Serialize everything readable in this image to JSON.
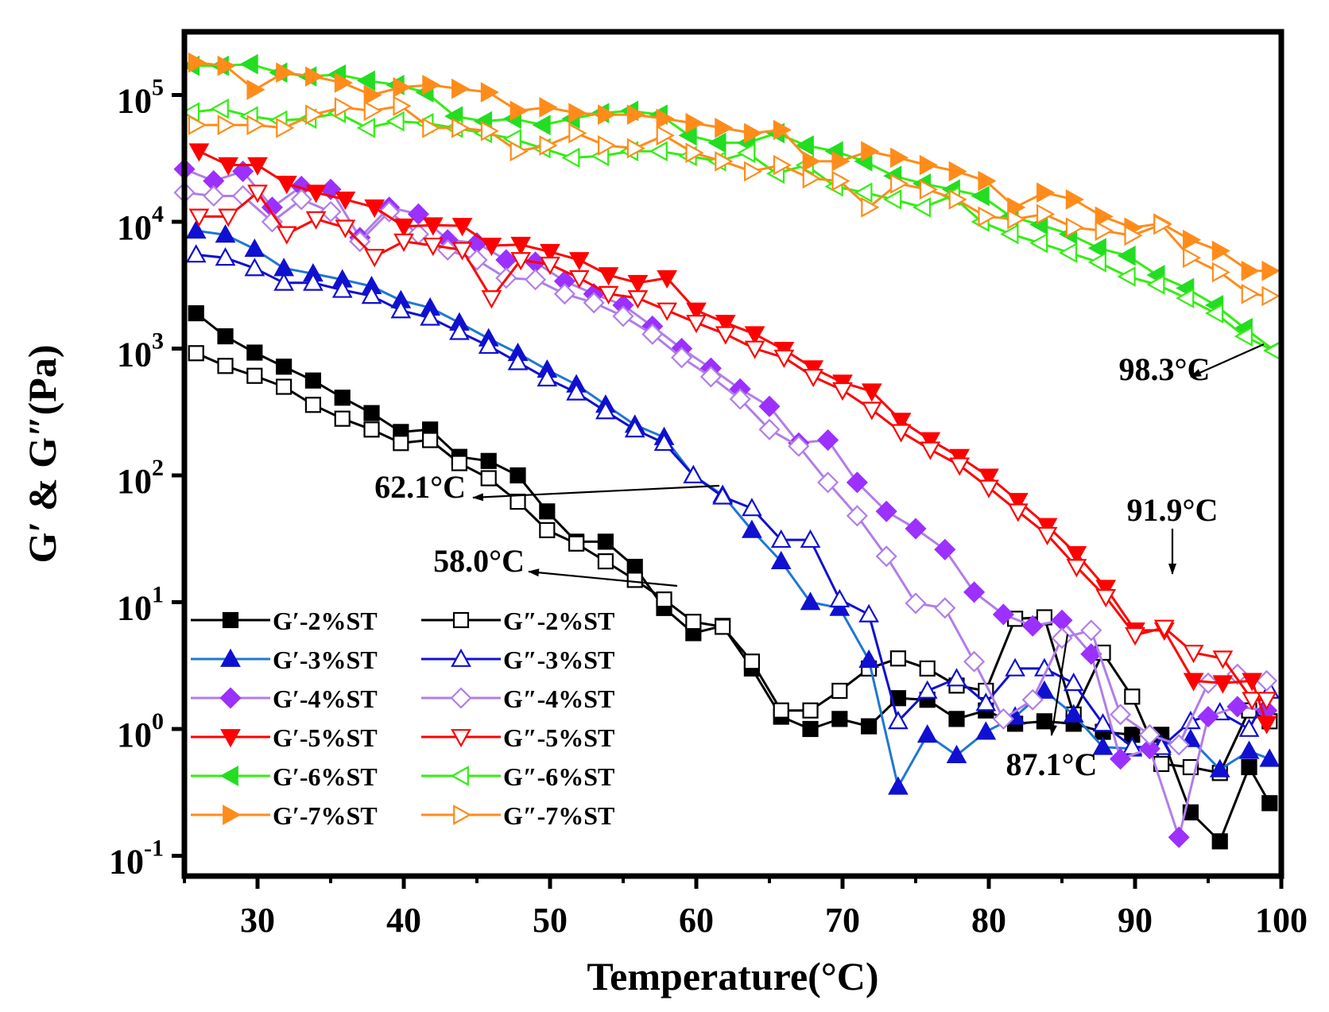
{
  "chart_data": {
    "type": "line",
    "title": "",
    "xlabel": "Temperature(°C)",
    "ylabel": "G′ & G″(Pa)",
    "yscale": "log",
    "xlim": [
      25,
      100
    ],
    "ylim": [
      0.1,
      400000
    ],
    "x_ticks": [
      30,
      40,
      50,
      60,
      70,
      80,
      90,
      100
    ],
    "x_tick_labels": [
      "30",
      "40",
      "50",
      "60",
      "70",
      "80",
      "90",
      "100"
    ],
    "y_ticks": [
      {
        "value": 0.1,
        "base": "10",
        "exp": "-1"
      },
      {
        "value": 1,
        "base": "10",
        "exp": "0"
      },
      {
        "value": 10,
        "base": "10",
        "exp": "1"
      },
      {
        "value": 100,
        "base": "10",
        "exp": "2"
      },
      {
        "value": 1000,
        "base": "10",
        "exp": "3"
      },
      {
        "value": 10000,
        "base": "10",
        "exp": "4"
      },
      {
        "value": 100000,
        "base": "10",
        "exp": "5"
      }
    ],
    "legend_location": "bottom-left",
    "series": [
      {
        "name": "G′-2%ST",
        "color": "#000000",
        "marker": "square",
        "filled": true,
        "x": [
          25.8,
          27.8,
          29.8,
          31.8,
          33.8,
          35.8,
          37.8,
          39.8,
          41.8,
          43.8,
          45.8,
          47.8,
          49.8,
          51.8,
          53.8,
          55.8,
          57.8,
          59.8,
          61.8,
          63.8,
          65.8,
          67.8,
          69.8,
          71.8,
          73.8,
          75.8,
          77.8,
          79.8,
          81.8,
          83.8,
          85.8,
          87.8,
          89.8,
          91.8,
          93.8,
          95.8,
          97.8,
          99.2
        ],
        "y": [
          1900,
          1250,
          930,
          720,
          560,
          410,
          310,
          220,
          230,
          140,
          130,
          100,
          52,
          30,
          30,
          19,
          9,
          5.7,
          6.5,
          3.0,
          1.25,
          1.0,
          1.2,
          1.05,
          1.75,
          1.7,
          1.2,
          1.4,
          1.1,
          1.15,
          1.1,
          0.95,
          0.9,
          0.9,
          0.22,
          0.13,
          0.5,
          0.26
        ]
      },
      {
        "name": "G″-2%ST",
        "color": "#000000",
        "marker": "square",
        "filled": false,
        "x": [
          25.8,
          27.8,
          29.8,
          31.8,
          33.8,
          35.8,
          37.8,
          39.8,
          41.8,
          43.8,
          45.8,
          47.8,
          49.8,
          51.8,
          53.8,
          55.8,
          57.8,
          59.8,
          61.8,
          63.8,
          65.8,
          67.8,
          69.8,
          71.8,
          73.8,
          75.8,
          77.8,
          79.8,
          81.8,
          83.8,
          85.8,
          87.8,
          89.8,
          91.8,
          93.8,
          95.8,
          97.8,
          99.2
        ],
        "y": [
          920,
          730,
          610,
          500,
          360,
          280,
          230,
          180,
          190,
          125,
          95,
          62,
          37,
          29,
          21,
          15,
          10.5,
          7,
          6.4,
          3.4,
          1.4,
          1.4,
          2.0,
          3.0,
          3.6,
          3.0,
          2.2,
          2.0,
          7.4,
          7.6,
          1.3,
          4.0,
          1.8,
          0.53,
          0.5,
          0.45,
          1.4,
          1.15
        ]
      },
      {
        "name": "G′-3%ST",
        "color": "#1f77d4",
        "marker": "triangle-up",
        "filled": true,
        "fill_color": "#1010d0",
        "x": [
          25.8,
          27.8,
          29.8,
          31.8,
          33.8,
          35.8,
          37.8,
          39.8,
          41.8,
          43.8,
          45.8,
          47.8,
          49.8,
          51.8,
          53.8,
          55.8,
          57.8,
          59.8,
          61.8,
          63.8,
          65.8,
          67.8,
          69.8,
          71.8,
          73.8,
          75.8,
          77.8,
          79.8,
          81.8,
          83.8,
          85.8,
          87.8,
          89.8,
          91.8,
          93.8,
          95.8,
          97.8,
          99.2
        ],
        "y": [
          8500,
          7900,
          6100,
          4300,
          3900,
          3500,
          3100,
          2400,
          2100,
          1600,
          1200,
          920,
          680,
          520,
          360,
          250,
          200,
          100,
          70,
          37,
          21,
          10,
          9,
          3.5,
          0.35,
          0.9,
          0.62,
          0.95,
          1.25,
          2.0,
          1.3,
          0.72,
          0.7,
          0.75,
          0.83,
          0.48,
          0.67,
          0.58
        ]
      },
      {
        "name": "G″-3%ST",
        "color": "#1010d0",
        "marker": "triangle-up",
        "filled": false,
        "x": [
          25.8,
          27.8,
          29.8,
          31.8,
          33.8,
          35.8,
          37.8,
          39.8,
          41.8,
          43.8,
          45.8,
          47.8,
          49.8,
          51.8,
          53.8,
          55.8,
          57.8,
          59.8,
          61.8,
          63.8,
          65.8,
          67.8,
          69.8,
          71.8,
          73.8,
          75.8,
          77.8,
          79.8,
          81.8,
          83.8,
          85.8,
          87.8,
          89.8,
          91.8,
          93.8,
          95.8,
          97.8,
          99.2
        ],
        "y": [
          5500,
          5200,
          4300,
          3300,
          3300,
          2900,
          2600,
          2000,
          1750,
          1350,
          1050,
          780,
          580,
          450,
          320,
          230,
          180,
          100,
          68,
          55,
          31,
          31,
          10.5,
          8,
          1.15,
          2.0,
          2.5,
          1.6,
          3.0,
          3.0,
          2.3,
          1.1,
          0.72,
          0.72,
          1.15,
          1.35,
          1.0,
          2.0
        ]
      },
      {
        "name": "G′-4%ST",
        "color": "#b07ee8",
        "marker": "diamond",
        "filled": true,
        "fill_color": "#9b30ff",
        "x": [
          25.0,
          27.0,
          29.0,
          31.0,
          33.0,
          35.0,
          37.0,
          39.0,
          41.0,
          43.0,
          45.0,
          47.0,
          49.0,
          51.0,
          53.0,
          55.0,
          57.0,
          59.0,
          61.0,
          63.0,
          65.0,
          67.0,
          69.0,
          71.0,
          73.0,
          75.0,
          77.0,
          79.0,
          81.0,
          83.0,
          85.0,
          87.0,
          89.0,
          91.0,
          93.0,
          95.0,
          97.0,
          99.0
        ],
        "y": [
          26000,
          21000,
          25000,
          13000,
          19000,
          18000,
          7500,
          13000,
          11500,
          7200,
          6800,
          5000,
          4800,
          3400,
          2700,
          2200,
          1500,
          1000,
          700,
          480,
          350,
          180,
          190,
          88,
          52,
          38,
          26,
          12,
          8,
          6.5,
          7.2,
          3.9,
          0.58,
          0.7,
          0.14,
          1.25,
          1.5,
          1.4
        ]
      },
      {
        "name": "G″-4%ST",
        "color": "#b07ee8",
        "marker": "diamond",
        "filled": false,
        "x": [
          25.0,
          27.0,
          29.0,
          31.0,
          33.0,
          35.0,
          37.0,
          39.0,
          41.0,
          43.0,
          45.0,
          47.0,
          49.0,
          51.0,
          53.0,
          55.0,
          57.0,
          59.0,
          61.0,
          63.0,
          65.0,
          67.0,
          69.0,
          71.0,
          73.0,
          75.0,
          77.0,
          79.0,
          81.0,
          83.0,
          85.0,
          87.0,
          89.0,
          91.0,
          93.0,
          95.0,
          97.0,
          99.0
        ],
        "y": [
          17000,
          16000,
          16000,
          10000,
          15000,
          12000,
          7000,
          12000,
          8000,
          6000,
          5000,
          3600,
          3500,
          2700,
          2300,
          1800,
          1300,
          850,
          600,
          400,
          230,
          170,
          88,
          48,
          23,
          9.8,
          9,
          3.4,
          1.2,
          1.7,
          5.2,
          6,
          1.3,
          0.9,
          0.75,
          2.3,
          2.7,
          2.4
        ]
      },
      {
        "name": "G′-5%ST",
        "color": "#ff0000",
        "marker": "triangle-down",
        "filled": true,
        "x": [
          26.0,
          28.0,
          30.0,
          32.0,
          34.0,
          36.0,
          38.0,
          40.0,
          42.0,
          44.0,
          46.0,
          48.0,
          50.0,
          52.0,
          54.0,
          56.0,
          58.0,
          60.0,
          62.0,
          64.0,
          66.0,
          68.0,
          70.0,
          72.0,
          74.0,
          76.0,
          78.0,
          80.0,
          82.0,
          84.0,
          86.0,
          88.0,
          90.0,
          92.0,
          94.0,
          96.0,
          98.0,
          99.0
        ],
        "y": [
          36000,
          28000,
          28000,
          20000,
          17000,
          15000,
          13000,
          9200,
          9400,
          9300,
          6500,
          6600,
          5800,
          5000,
          3800,
          3300,
          3600,
          2000,
          1600,
          1300,
          980,
          700,
          540,
          460,
          270,
          190,
          140,
          98,
          63,
          40,
          24,
          13,
          6,
          6,
          2.4,
          2.3,
          2.4,
          1.1
        ]
      },
      {
        "name": "G″-5%ST",
        "color": "#ff0000",
        "marker": "triangle-down",
        "filled": false,
        "x": [
          26.0,
          28.0,
          30.0,
          32.0,
          34.0,
          36.0,
          38.0,
          40.0,
          42.0,
          44.0,
          46.0,
          48.0,
          50.0,
          52.0,
          54.0,
          56.0,
          58.0,
          60.0,
          62.0,
          64.0,
          66.0,
          68.0,
          70.0,
          72.0,
          74.0,
          76.0,
          78.0,
          80.0,
          82.0,
          84.0,
          86.0,
          88.0,
          90.0,
          92.0,
          94.0,
          96.0,
          98.0,
          99.0
        ],
        "y": [
          11000,
          11000,
          17000,
          8000,
          10500,
          9000,
          5300,
          7000,
          6500,
          6000,
          2500,
          5000,
          4600,
          3600,
          2700,
          2500,
          2000,
          1600,
          1300,
          1000,
          850,
          600,
          470,
          330,
          220,
          160,
          120,
          80,
          52,
          34,
          19,
          11,
          5.5,
          6.3,
          4,
          3.6,
          1.7,
          1.7
        ]
      },
      {
        "name": "G′-6%ST",
        "color": "#33ee11",
        "marker": "triangle-left",
        "filled": true,
        "fill_color": "#22dd22",
        "x": [
          25.5,
          27.5,
          29.5,
          31.5,
          33.5,
          35.5,
          37.5,
          39.5,
          41.5,
          43.5,
          45.5,
          47.5,
          49.5,
          51.5,
          53.5,
          55.5,
          57.5,
          59.5,
          61.5,
          63.5,
          65.5,
          67.5,
          69.5,
          71.5,
          73.5,
          75.5,
          77.5,
          79.5,
          81.5,
          83.5,
          85.5,
          87.5,
          89.5,
          91.5,
          93.5,
          95.5,
          97.5,
          99.5
        ],
        "y": [
          170000,
          170000,
          175000,
          150000,
          140000,
          145000,
          130000,
          120000,
          105000,
          68000,
          62000,
          65000,
          58000,
          65000,
          72000,
          75000,
          70000,
          48000,
          42000,
          42000,
          50000,
          40000,
          36000,
          30000,
          23000,
          20000,
          18000,
          16000,
          11000,
          9500,
          8000,
          6200,
          5400,
          3800,
          3000,
          2200,
          1450,
          970
        ]
      },
      {
        "name": "G″-6%ST",
        "color": "#33ee11",
        "marker": "triangle-left",
        "filled": false,
        "x": [
          25.5,
          27.5,
          29.5,
          31.5,
          33.5,
          35.5,
          37.5,
          39.5,
          41.5,
          43.5,
          45.5,
          47.5,
          49.5,
          51.5,
          53.5,
          55.5,
          57.5,
          59.5,
          61.5,
          63.5,
          65.5,
          67.5,
          69.5,
          71.5,
          73.5,
          75.5,
          77.5,
          79.5,
          81.5,
          83.5,
          85.5,
          87.5,
          89.5,
          91.5,
          93.5,
          95.5,
          97.5,
          99.5
        ],
        "y": [
          73000,
          78000,
          68000,
          63000,
          65000,
          72000,
          55000,
          62000,
          60000,
          55000,
          50000,
          45000,
          38000,
          32000,
          33000,
          36000,
          36000,
          33000,
          30000,
          35000,
          24000,
          28000,
          19000,
          17000,
          15000,
          13000,
          16000,
          10000,
          8000,
          6800,
          5700,
          4800,
          3700,
          3200,
          2500,
          1900,
          1250,
          960
        ]
      },
      {
        "name": "G′-7%ST",
        "color": "#ff8c1a",
        "marker": "triangle-right",
        "filled": true,
        "x": [
          25.8,
          27.8,
          29.8,
          31.8,
          33.8,
          35.8,
          37.8,
          39.8,
          41.8,
          43.8,
          45.8,
          47.8,
          49.8,
          51.8,
          53.8,
          55.8,
          57.8,
          59.8,
          61.8,
          63.8,
          65.8,
          67.8,
          69.8,
          71.8,
          73.8,
          75.8,
          77.8,
          79.8,
          81.8,
          83.8,
          85.8,
          87.8,
          89.8,
          91.8,
          93.8,
          95.8,
          97.8,
          99.2
        ],
        "y": [
          180000,
          170000,
          110000,
          150000,
          140000,
          125000,
          100000,
          115000,
          120000,
          112000,
          105000,
          75000,
          80000,
          72000,
          70000,
          70000,
          65000,
          60000,
          55000,
          50000,
          53000,
          30000,
          30000,
          36000,
          32000,
          28000,
          25000,
          21000,
          13000,
          17000,
          15000,
          11000,
          9000,
          9700,
          7200,
          5900,
          4100,
          4100
        ]
      },
      {
        "name": "G″-7%ST",
        "color": "#ff8c1a",
        "marker": "triangle-right",
        "filled": false,
        "x": [
          25.8,
          27.8,
          29.8,
          31.8,
          33.8,
          35.8,
          37.8,
          39.8,
          41.8,
          43.8,
          45.8,
          47.8,
          49.8,
          51.8,
          53.8,
          55.8,
          57.8,
          59.8,
          61.8,
          63.8,
          65.8,
          67.8,
          69.8,
          71.8,
          73.8,
          75.8,
          77.8,
          79.8,
          81.8,
          83.8,
          85.8,
          87.8,
          89.8,
          91.8,
          93.8,
          95.8,
          97.8,
          99.2
        ],
        "y": [
          58000,
          58000,
          58000,
          55000,
          70000,
          80000,
          75000,
          82000,
          55000,
          55000,
          52000,
          36000,
          40000,
          50000,
          40000,
          38000,
          48000,
          35000,
          30000,
          25000,
          28000,
          22000,
          21000,
          13000,
          20000,
          18000,
          15000,
          11000,
          10500,
          11500,
          9000,
          8500,
          7800,
          9500,
          5200,
          4000,
          2700,
          2600
        ]
      }
    ],
    "annotations": [
      {
        "text": "98.3°C",
        "tx": 91.5,
        "ty": 200,
        "ax": 99.3,
        "ay": 1000
      },
      {
        "text": "62.1°C",
        "tx": 54.0,
        "ty": 90,
        "ax": 62.1,
        "ay": 100
      },
      {
        "text": "58.0°C",
        "tx": 52.0,
        "ty": 15,
        "ax": 58.0,
        "ay": 9.5
      },
      {
        "text": "91.9°C",
        "tx": 92.2,
        "ty": 22,
        "ax": 92.2,
        "ay": 5.8
      },
      {
        "text": "87.1°C",
        "tx": 83.5,
        "ty": 0.48,
        "ax": 87.1,
        "ay": 5.5
      }
    ]
  }
}
